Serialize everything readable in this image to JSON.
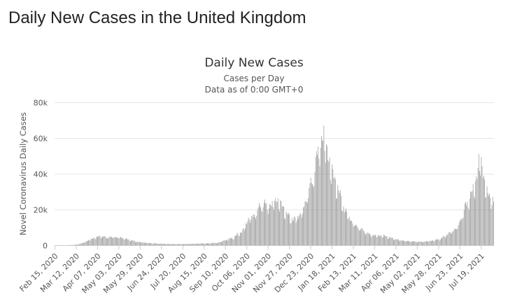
{
  "page": {
    "heading": "Daily New Cases in the United Kingdom"
  },
  "chart_data": {
    "type": "bar",
    "title": "Daily New Cases",
    "subtitle_lines": [
      "Cases per Day",
      "Data as of 0:00 GMT+0"
    ],
    "ylabel": "Novel Coronavirus Daily Cases",
    "xlabel": "",
    "ylim": [
      0,
      80000
    ],
    "yticks": [
      0,
      20000,
      40000,
      60000,
      80000
    ],
    "ytick_labels": [
      "0",
      "20k",
      "40k",
      "60k",
      "80k"
    ],
    "x_start": "2020-02-15",
    "x_end": "2021-08-03",
    "xticks": [
      "2020-02-15",
      "2020-03-12",
      "2020-04-07",
      "2020-05-03",
      "2020-05-29",
      "2020-06-24",
      "2020-07-20",
      "2020-08-15",
      "2020-09-10",
      "2020-10-06",
      "2020-11-01",
      "2020-11-27",
      "2020-12-23",
      "2021-01-18",
      "2021-02-13",
      "2021-03-11",
      "2021-04-06",
      "2021-05-02",
      "2021-05-28",
      "2021-06-23",
      "2021-07-19"
    ],
    "xtick_labels": [
      "Feb 15, 2020",
      "Mar 12, 2020",
      "Apr 07, 2020",
      "May 03, 2020",
      "May 29, 2020",
      "Jun 24, 2020",
      "Jul 20, 2020",
      "Aug 15, 2020",
      "Sep 10, 2020",
      "Oct 06, 2020",
      "Nov 01, 2020",
      "Nov 27, 2020",
      "Dec 23, 2020",
      "Jan 18, 2021",
      "Feb 13, 2021",
      "Mar 11, 2021",
      "Apr 06, 2021",
      "May 02, 2021",
      "May 28, 2021",
      "Jun 23, 2021",
      "Jul 19, 2021"
    ],
    "series_color": "#999999",
    "grid": "horizontal",
    "series": [
      {
        "name": "",
        "points": [
          [
            "2020-02-15",
            0
          ],
          [
            "2020-03-01",
            30
          ],
          [
            "2020-03-10",
            200
          ],
          [
            "2020-03-15",
            600
          ],
          [
            "2020-03-20",
            1300
          ],
          [
            "2020-03-25",
            2400
          ],
          [
            "2020-03-31",
            3700
          ],
          [
            "2020-04-05",
            4500
          ],
          [
            "2020-04-10",
            5300
          ],
          [
            "2020-04-15",
            4800
          ],
          [
            "2020-04-20",
            4500
          ],
          [
            "2020-04-25",
            4800
          ],
          [
            "2020-05-01",
            4500
          ],
          [
            "2020-05-06",
            4400
          ],
          [
            "2020-05-10",
            3800
          ],
          [
            "2020-05-15",
            3200
          ],
          [
            "2020-05-20",
            2600
          ],
          [
            "2020-05-25",
            2000
          ],
          [
            "2020-06-01",
            1600
          ],
          [
            "2020-06-10",
            1200
          ],
          [
            "2020-06-20",
            950
          ],
          [
            "2020-07-01",
            750
          ],
          [
            "2020-07-15",
            650
          ],
          [
            "2020-07-31",
            800
          ],
          [
            "2020-08-10",
            1000
          ],
          [
            "2020-08-20",
            1100
          ],
          [
            "2020-08-31",
            1400
          ],
          [
            "2020-09-05",
            2100
          ],
          [
            "2020-09-10",
            3000
          ],
          [
            "2020-09-15",
            3700
          ],
          [
            "2020-09-20",
            4400
          ],
          [
            "2020-09-25",
            6400
          ],
          [
            "2020-09-30",
            7500
          ],
          [
            "2020-10-04",
            11000
          ],
          [
            "2020-10-08",
            15000
          ],
          [
            "2020-10-12",
            16000
          ],
          [
            "2020-10-16",
            17500
          ],
          [
            "2020-10-20",
            21000
          ],
          [
            "2020-10-24",
            23000
          ],
          [
            "2020-10-28",
            24000
          ],
          [
            "2020-11-01",
            22000
          ],
          [
            "2020-11-05",
            23500
          ],
          [
            "2020-11-09",
            24500
          ],
          [
            "2020-11-12",
            26500
          ],
          [
            "2020-11-15",
            24000
          ],
          [
            "2020-11-19",
            22000
          ],
          [
            "2020-11-23",
            18000
          ],
          [
            "2020-11-27",
            16500
          ],
          [
            "2020-12-01",
            14500
          ],
          [
            "2020-12-05",
            15500
          ],
          [
            "2020-12-09",
            17000
          ],
          [
            "2020-12-13",
            19500
          ],
          [
            "2020-12-17",
            25000
          ],
          [
            "2020-12-21",
            33000
          ],
          [
            "2020-12-25",
            36000
          ],
          [
            "2020-12-29",
            48000
          ],
          [
            "2021-01-02",
            55000
          ],
          [
            "2021-01-05",
            60000
          ],
          [
            "2021-01-08",
            63000
          ],
          [
            "2021-01-11",
            55000
          ],
          [
            "2021-01-14",
            50000
          ],
          [
            "2021-01-17",
            43000
          ],
          [
            "2021-01-21",
            38000
          ],
          [
            "2021-01-25",
            32000
          ],
          [
            "2021-01-29",
            27000
          ],
          [
            "2021-02-02",
            20000
          ],
          [
            "2021-02-06",
            18000
          ],
          [
            "2021-02-10",
            14000
          ],
          [
            "2021-02-15",
            11500
          ],
          [
            "2021-02-20",
            10000
          ],
          [
            "2021-02-25",
            8500
          ],
          [
            "2021-03-02",
            6800
          ],
          [
            "2021-03-08",
            5800
          ],
          [
            "2021-03-15",
            5500
          ],
          [
            "2021-03-22",
            5500
          ],
          [
            "2021-03-29",
            4500
          ],
          [
            "2021-04-05",
            3500
          ],
          [
            "2021-04-12",
            2800
          ],
          [
            "2021-04-19",
            2400
          ],
          [
            "2021-04-26",
            2200
          ],
          [
            "2021-05-03",
            2000
          ],
          [
            "2021-05-10",
            2100
          ],
          [
            "2021-05-17",
            2400
          ],
          [
            "2021-05-24",
            3000
          ],
          [
            "2021-05-31",
            3800
          ],
          [
            "2021-06-05",
            5500
          ],
          [
            "2021-06-10",
            7000
          ],
          [
            "2021-06-15",
            8500
          ],
          [
            "2021-06-20",
            10500
          ],
          [
            "2021-06-25",
            16000
          ],
          [
            "2021-06-30",
            23000
          ],
          [
            "2021-07-05",
            27000
          ],
          [
            "2021-07-10",
            33000
          ],
          [
            "2021-07-14",
            40000
          ],
          [
            "2021-07-17",
            50000
          ],
          [
            "2021-07-20",
            45000
          ],
          [
            "2021-07-23",
            36000
          ],
          [
            "2021-07-26",
            30000
          ],
          [
            "2021-07-29",
            28000
          ],
          [
            "2021-08-01",
            27000
          ],
          [
            "2021-08-03",
            25000
          ]
        ]
      }
    ]
  }
}
